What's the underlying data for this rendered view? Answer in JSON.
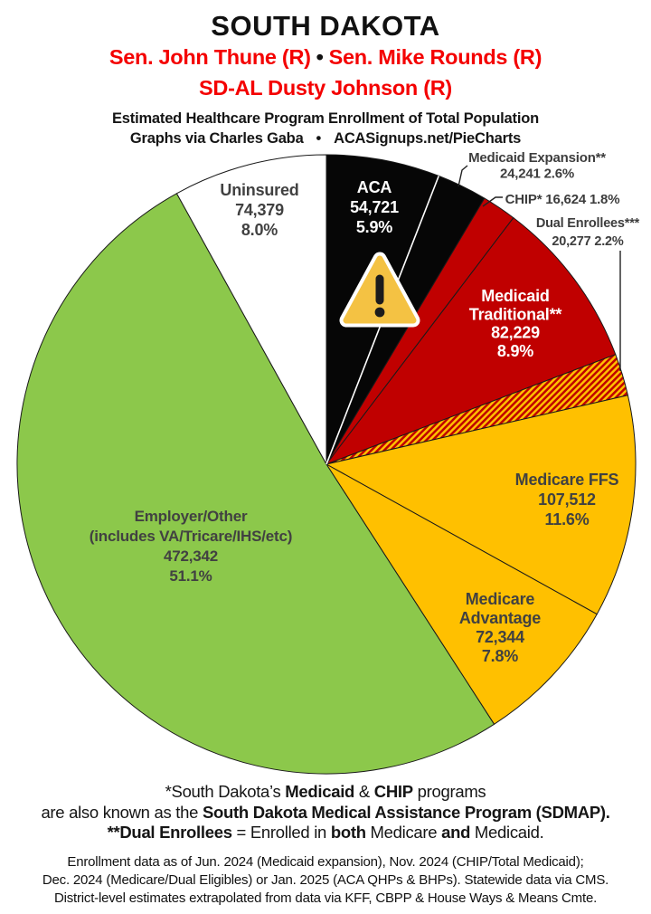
{
  "header": {
    "state": "SOUTH DAKOTA",
    "senator1": "Sen. John Thune (R)",
    "bullet": "•",
    "senator2": "Sen. Mike Rounds (R)",
    "representative": "SD-AL Dusty Johnson (R)",
    "subtitle1": "Estimated Healthcare Program Enrollment of Total Population",
    "credit_left": "Graphs via Charles Gaba",
    "credit_right": "ACASignups.net/PieCharts"
  },
  "colors": {
    "black_slice": "#060606",
    "red_slice": "#C00000",
    "amber_slice": "#FFC000",
    "green_slice": "#8CC84B",
    "white_slice": "#FFFFFF",
    "slice_stroke": "#1a1a1a",
    "label_gray": "#414141",
    "callout_gray": "#3d3d3d",
    "header_red": "#F40000",
    "warning_fill": "#F4C243",
    "warning_mark": "#1c1c1c"
  },
  "chart_data": {
    "type": "pie",
    "title": "Estimated Healthcare Program Enrollment of Total Population",
    "total": 924669,
    "start_angle_deg": 0,
    "direction": "clockwise",
    "slices": [
      {
        "id": "aca",
        "name": "ACA",
        "value": 54721,
        "value_label": "54,721",
        "pct_label": "5.9%",
        "color": "#060606",
        "label_lines": [
          "ACA",
          "54,721",
          "5.9%"
        ],
        "label_style": "inside-white"
      },
      {
        "id": "medicaid_expansion",
        "name": "Medicaid Expansion**",
        "value": 24241,
        "value_label": "24,241",
        "pct_label": "2.6%",
        "color": "#060606",
        "label_lines": [
          "Medicaid Expansion**",
          "24,241 2.6%"
        ],
        "label_style": "callout"
      },
      {
        "id": "chip",
        "name": "CHIP*",
        "value": 16624,
        "value_label": "16,624",
        "pct_label": "1.8%",
        "color": "#C00000",
        "label_lines": [
          "CHIP* 16,624 1.8%"
        ],
        "label_style": "callout"
      },
      {
        "id": "medicaid_traditional",
        "name": "Medicaid Traditional**",
        "value": 82229,
        "value_label": "82,229",
        "pct_label": "8.9%",
        "color": "#C00000",
        "label_lines": [
          "Medicaid",
          "Traditional**",
          "82,229",
          "8.9%"
        ],
        "label_style": "inside-white"
      },
      {
        "id": "dual_enrollees",
        "name": "Dual Enrollees***",
        "value": 20277,
        "value_label": "20,277",
        "pct_label": "2.2%",
        "color": "hatch",
        "label_lines": [
          "Dual Enrollees***",
          "20,277 2.2%"
        ],
        "label_style": "callout"
      },
      {
        "id": "medicare_ffs",
        "name": "Medicare FFS",
        "value": 107512,
        "value_label": "107,512",
        "pct_label": "11.6%",
        "color": "#FFC000",
        "label_lines": [
          "Medicare FFS",
          "107,512",
          "11.6%"
        ],
        "label_style": "inside-dark"
      },
      {
        "id": "medicare_advantage",
        "name": "Medicare Advantage",
        "value": 72344,
        "value_label": "72,344",
        "pct_label": "7.8%",
        "color": "#FFC000",
        "label_lines": [
          "Medicare",
          "Advantage",
          "72,344",
          "7.8%"
        ],
        "label_style": "inside-dark"
      },
      {
        "id": "employer",
        "name": "Employer/Other (includes VA/Tricare/IHS/etc)",
        "value": 472342,
        "value_label": "472,342",
        "pct_label": "51.1%",
        "color": "#8CC84B",
        "label_lines": [
          "Employer/Other",
          "(includes VA/Tricare/IHS/etc)",
          "472,342",
          "51.1%"
        ],
        "label_style": "inside-dark"
      },
      {
        "id": "uninsured",
        "name": "Uninsured",
        "value": 74379,
        "value_label": "74,379",
        "pct_label": "8.0%",
        "color": "#FFFFFF",
        "label_lines": [
          "Uninsured",
          "74,379",
          "8.0%"
        ],
        "label_style": "inside-dark"
      }
    ],
    "annotations": [
      "warning-triangle-icon on ACA slice"
    ]
  },
  "footnotes": {
    "f1": [
      {
        "t": "*South Dakota’s ",
        "b": false
      },
      {
        "t": "Medicaid",
        "b": true
      },
      {
        "t": " & ",
        "b": false
      },
      {
        "t": "CHIP",
        "b": true
      },
      {
        "t": " programs",
        "b": false
      }
    ],
    "f2": [
      {
        "t": "are also known as the ",
        "b": false
      },
      {
        "t": "South Dakota Medical Assistance Program (SDMAP).",
        "b": true
      }
    ],
    "f3": [
      {
        "t": "**Dual Enrollees",
        "b": true
      },
      {
        "t": " = Enrolled in ",
        "b": false
      },
      {
        "t": "both",
        "b": true
      },
      {
        "t": " Medicare ",
        "b": false
      },
      {
        "t": "and",
        "b": true
      },
      {
        "t": " Medicaid.",
        "b": false
      }
    ],
    "small1": "Enrollment data as of Jun. 2024 (Medicaid expansion), Nov. 2024 (CHIP/Total Medicaid);",
    "small2": "Dec. 2024 (Medicare/Dual Eligibles) or Jan. 2025 (ACA QHPs & BHPs). Statewide data via CMS.",
    "small3": "District-level estimates extrapolated from data via KFF, CBPP & House Ways & Means Cmte."
  }
}
